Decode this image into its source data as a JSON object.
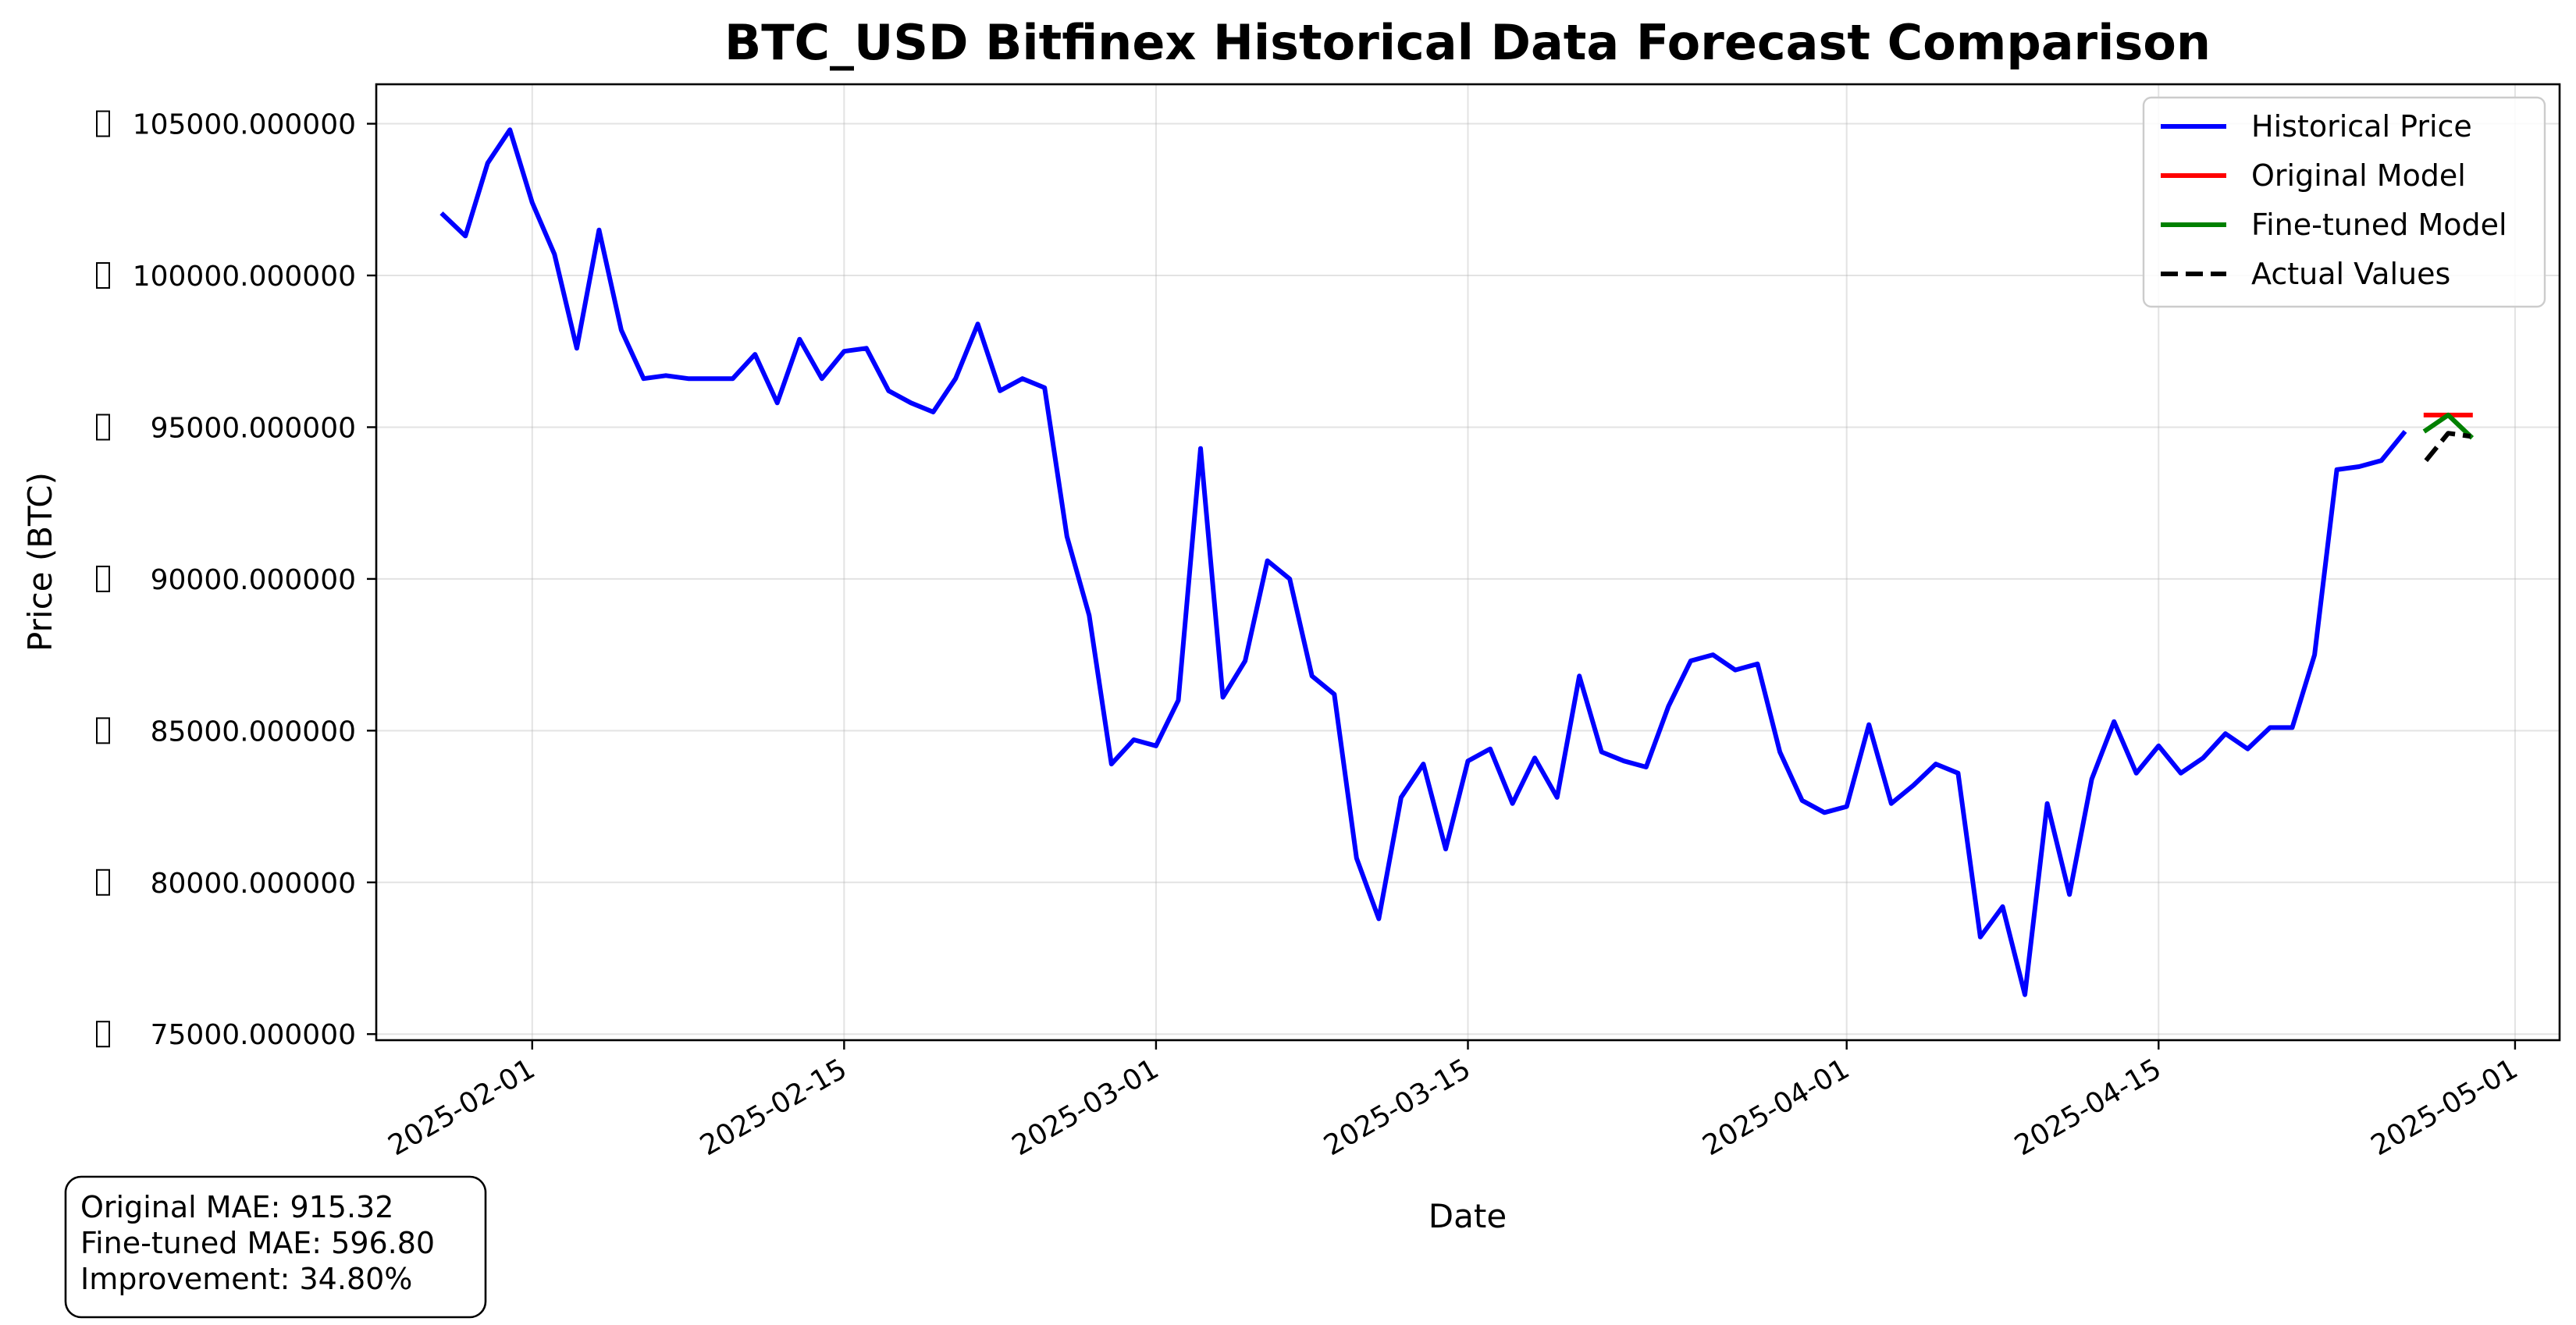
{
  "chart_data": {
    "type": "line",
    "title": "BTC_USD Bitfinex Historical Data Forecast Comparison",
    "xlabel": "Date",
    "ylabel": "Price (BTC)",
    "x_axis_type": "date",
    "xlim": [
      "2025-01-25",
      "2025-05-03"
    ],
    "ylim": [
      74800,
      106300
    ],
    "x_ticks": [
      "2025-02-01",
      "2025-02-15",
      "2025-03-01",
      "2025-03-15",
      "2025-04-01",
      "2025-04-15",
      "2025-05-01"
    ],
    "y_ticks": [
      75000,
      80000,
      85000,
      90000,
      95000,
      100000,
      105000
    ],
    "y_tick_labels": [
      "75000.000000",
      "80000.000000",
      "85000.000000",
      "90000.000000",
      "95000.000000",
      "100000.000000",
      "105000.000000"
    ],
    "grid": true,
    "legend_position": "top-right",
    "series": [
      {
        "name": "Historical Price",
        "color": "#0000ff",
        "style": "solid",
        "x": [
          "2025-01-28",
          "2025-01-29",
          "2025-01-30",
          "2025-01-31",
          "2025-02-01",
          "2025-02-02",
          "2025-02-03",
          "2025-02-04",
          "2025-02-05",
          "2025-02-06",
          "2025-02-07",
          "2025-02-08",
          "2025-02-09",
          "2025-02-10",
          "2025-02-11",
          "2025-02-12",
          "2025-02-13",
          "2025-02-14",
          "2025-02-15",
          "2025-02-16",
          "2025-02-17",
          "2025-02-18",
          "2025-02-19",
          "2025-02-20",
          "2025-02-21",
          "2025-02-22",
          "2025-02-23",
          "2025-02-24",
          "2025-02-25",
          "2025-02-26",
          "2025-02-27",
          "2025-02-28",
          "2025-03-01",
          "2025-03-02",
          "2025-03-03",
          "2025-03-04",
          "2025-03-05",
          "2025-03-06",
          "2025-03-07",
          "2025-03-08",
          "2025-03-09",
          "2025-03-10",
          "2025-03-11",
          "2025-03-12",
          "2025-03-13",
          "2025-03-14",
          "2025-03-15",
          "2025-03-16",
          "2025-03-17",
          "2025-03-18",
          "2025-03-19",
          "2025-03-20",
          "2025-03-21",
          "2025-03-22",
          "2025-03-23",
          "2025-03-24",
          "2025-03-25",
          "2025-03-26",
          "2025-03-27",
          "2025-03-28",
          "2025-03-29",
          "2025-03-30",
          "2025-03-31",
          "2025-04-01",
          "2025-04-02",
          "2025-04-03",
          "2025-04-04",
          "2025-04-05",
          "2025-04-06",
          "2025-04-07",
          "2025-04-08",
          "2025-04-09",
          "2025-04-10",
          "2025-04-11",
          "2025-04-12",
          "2025-04-13",
          "2025-04-14",
          "2025-04-15",
          "2025-04-16",
          "2025-04-17",
          "2025-04-18",
          "2025-04-19",
          "2025-04-20",
          "2025-04-21",
          "2025-04-22",
          "2025-04-23",
          "2025-04-24",
          "2025-04-25",
          "2025-04-26"
        ],
        "y": [
          102000,
          101300,
          103700,
          104800,
          102400,
          100700,
          97600,
          101500,
          98200,
          96600,
          96700,
          96600,
          96600,
          96600,
          97400,
          95800,
          97900,
          96600,
          97500,
          97600,
          96200,
          95800,
          95500,
          96600,
          98400,
          96200,
          96600,
          96300,
          91400,
          88800,
          83900,
          84700,
          84500,
          86000,
          94300,
          86100,
          87300,
          90600,
          90000,
          86800,
          86200,
          80800,
          78800,
          82800,
          83900,
          81100,
          84000,
          84400,
          82600,
          84100,
          82800,
          86800,
          84300,
          84000,
          83800,
          85800,
          87300,
          87500,
          87000,
          87200,
          84300,
          82700,
          82300,
          82500,
          85200,
          82600,
          83200,
          83900,
          83600,
          78200,
          79200,
          76300,
          82600,
          79600,
          83400,
          85300,
          83600,
          84500,
          83600,
          84100,
          84900,
          84400,
          85100,
          85100,
          87500,
          93600,
          93700,
          93900,
          94800
        ]
      },
      {
        "name": "Original Model",
        "color": "#ff0000",
        "style": "solid",
        "x": [
          "2025-04-27",
          "2025-04-28",
          "2025-04-29"
        ],
        "y": [
          95400,
          95400,
          95400
        ]
      },
      {
        "name": "Fine-tuned Model",
        "color": "#008000",
        "style": "solid",
        "x": [
          "2025-04-27",
          "2025-04-28",
          "2025-04-29"
        ],
        "y": [
          94900,
          95400,
          94700
        ]
      },
      {
        "name": "Actual Values",
        "color": "#000000",
        "style": "dashed",
        "x": [
          "2025-04-27",
          "2025-04-28",
          "2025-04-29"
        ],
        "y": [
          93900,
          94800,
          94700
        ]
      }
    ]
  },
  "stats_box": {
    "original_mae": "Original MAE: 915.32",
    "finetuned_mae": "Fine-tuned MAE: 596.80",
    "improvement": "Improvement: 34.80%"
  }
}
